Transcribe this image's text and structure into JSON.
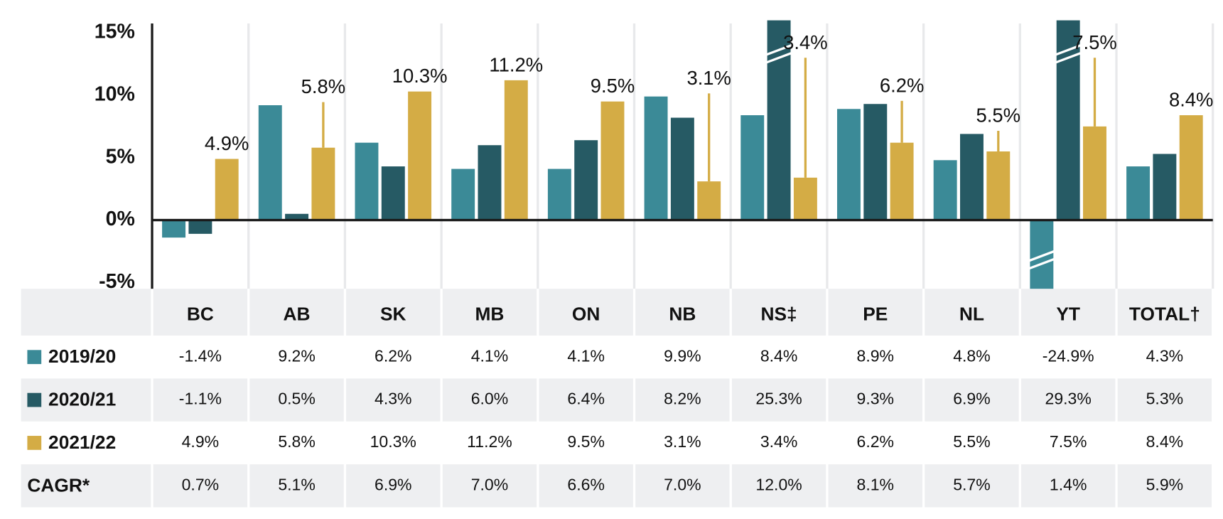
{
  "chart_data": {
    "type": "bar",
    "categories": [
      "BC",
      "AB",
      "SK",
      "MB",
      "ON",
      "NB",
      "NS‡",
      "PE",
      "NL",
      "YT",
      "TOTAL†"
    ],
    "series": [
      {
        "name": "2019/20",
        "color": "#3b8a97",
        "values": [
          -1.4,
          9.2,
          6.2,
          4.1,
          4.1,
          9.9,
          8.4,
          8.9,
          4.8,
          -24.9,
          4.3
        ],
        "value_labels": [
          "-1.4%",
          "9.2%",
          "6.2%",
          "4.1%",
          "4.1%",
          "9.9%",
          "8.4%",
          "8.9%",
          "4.8%",
          "-24.9%",
          "4.3%"
        ]
      },
      {
        "name": "2020/21",
        "color": "#265a64",
        "values": [
          -1.1,
          0.5,
          4.3,
          6.0,
          6.4,
          8.2,
          25.3,
          9.3,
          6.9,
          29.3,
          5.3
        ],
        "value_labels": [
          "-1.1%",
          "0.5%",
          "4.3%",
          "6.0%",
          "6.4%",
          "8.2%",
          "25.3%",
          "9.3%",
          "6.9%",
          "29.3%",
          "5.3%"
        ]
      },
      {
        "name": "2021/22",
        "color": "#d4ac45",
        "values": [
          4.9,
          5.8,
          10.3,
          11.2,
          9.5,
          3.1,
          3.4,
          6.2,
          5.5,
          7.5,
          8.4
        ],
        "value_labels": [
          "4.9%",
          "5.8%",
          "10.3%",
          "11.2%",
          "9.5%",
          "3.1%",
          "3.4%",
          "6.2%",
          "5.5%",
          "7.5%",
          "8.4%"
        ]
      }
    ],
    "cagr": {
      "name": "CAGR*",
      "values": [
        "0.7%",
        "5.1%",
        "6.9%",
        "7.0%",
        "6.6%",
        "7.0%",
        "12.0%",
        "8.1%",
        "5.7%",
        "1.4%",
        "5.9%"
      ]
    },
    "ylim": [
      -5.5,
      16
    ],
    "yticks": [
      {
        "value": -5,
        "label": "-5%"
      },
      {
        "value": 0,
        "label": "0%"
      },
      {
        "value": 5,
        "label": "5%"
      },
      {
        "value": 10,
        "label": "10%"
      },
      {
        "value": 15,
        "label": "15%"
      }
    ],
    "grid": false
  }
}
